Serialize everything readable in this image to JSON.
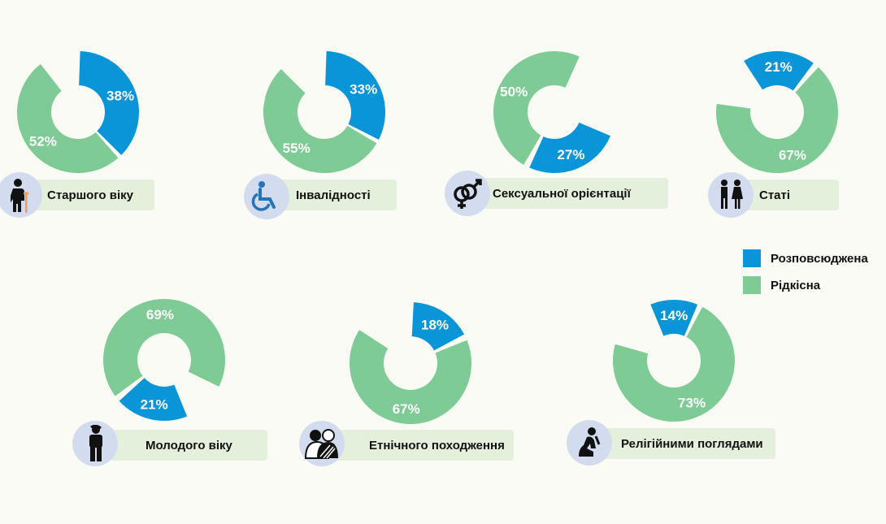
{
  "colors": {
    "common": "#0a95d8",
    "rare": "#7ecb95"
  },
  "legend": [
    {
      "label": "Розповсюджена",
      "color": "#0a95d8"
    },
    {
      "label": "Рідкісна",
      "color": "#7ecb95"
    }
  ],
  "chart_data": [
    {
      "type": "donut",
      "category": "Старшого віку",
      "icon": "elderly-person-icon",
      "series": [
        {
          "name": "Розповсюджена",
          "value": 38
        },
        {
          "name": "Рідкісна",
          "value": 52
        }
      ],
      "labels": [
        "38%",
        "52%"
      ]
    },
    {
      "type": "donut",
      "category": "Інвалідності",
      "icon": "wheelchair-icon",
      "series": [
        {
          "name": "Розповсюджена",
          "value": 33
        },
        {
          "name": "Рідкісна",
          "value": 55
        }
      ],
      "labels": [
        "33%",
        "55%"
      ]
    },
    {
      "type": "donut",
      "category": "Сексуальної орієнтації",
      "icon": "gender-symbols-icon",
      "series": [
        {
          "name": "Розповсюджена",
          "value": 27
        },
        {
          "name": "Рідкісна",
          "value": 50
        }
      ],
      "labels": [
        "27%",
        "50%"
      ]
    },
    {
      "type": "donut",
      "category": "Статі",
      "icon": "man-woman-icon",
      "series": [
        {
          "name": "Розповсюджена",
          "value": 21
        },
        {
          "name": "Рідкісна",
          "value": 67
        }
      ],
      "labels": [
        "21%",
        "67%"
      ]
    },
    {
      "type": "donut",
      "category": "Молодого віку",
      "icon": "young-person-icon",
      "series": [
        {
          "name": "Розповсюджена",
          "value": 21
        },
        {
          "name": "Рідкісна",
          "value": 69
        }
      ],
      "labels": [
        "21%",
        "69%"
      ]
    },
    {
      "type": "donut",
      "category": "Етнічного походження",
      "icon": "ethnic-people-icon",
      "series": [
        {
          "name": "Розповсюджена",
          "value": 18
        },
        {
          "name": "Рідкісна",
          "value": 67
        }
      ],
      "labels": [
        "18%",
        "67%"
      ]
    },
    {
      "type": "donut",
      "category": "Релігійними поглядами",
      "icon": "praying-person-icon",
      "series": [
        {
          "name": "Розповсюджена",
          "value": 14
        },
        {
          "name": "Рідкісна",
          "value": 73
        }
      ],
      "labels": [
        "14%",
        "73%"
      ]
    }
  ]
}
